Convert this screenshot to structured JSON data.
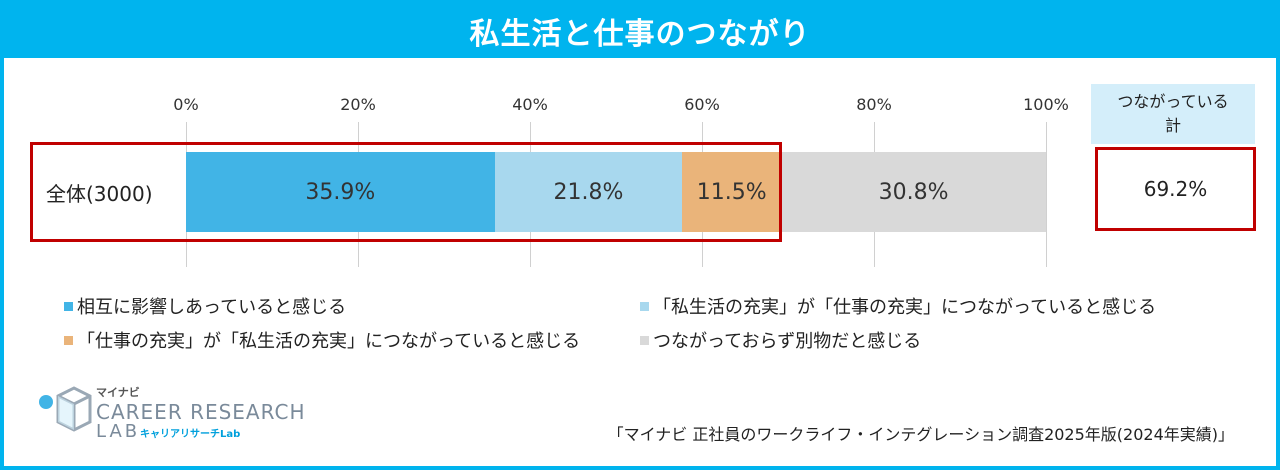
{
  "title": "私生活と仕事のつながり",
  "chart_data": {
    "type": "bar",
    "orientation": "horizontal-stacked",
    "xlim": [
      0,
      100
    ],
    "ticks": [
      "0%",
      "20%",
      "40%",
      "60%",
      "80%",
      "100%"
    ],
    "categories": [
      "全体(3000)"
    ],
    "series": [
      {
        "name": "相互に影響しあっていると感じる",
        "values": [
          35.9
        ],
        "label": "35.9%",
        "color": "#41b4e6"
      },
      {
        "name": "「私生活の充実」が「仕事の充実」につながっていると感じる",
        "values": [
          21.8
        ],
        "label": "21.8%",
        "color": "#a8d8ee"
      },
      {
        "name": "「仕事の充実」が「私生活の充実」につながっていると感じる",
        "values": [
          11.5
        ],
        "label": "11.5%",
        "color": "#eab47a"
      },
      {
        "name": "つながっておらず別物だと感じる",
        "values": [
          30.8
        ],
        "label": "30.8%",
        "color": "#d9d9d9"
      }
    ],
    "total": {
      "header_line1": "つながっている",
      "header_line2": "計",
      "value": 69.2,
      "label": "69.2%"
    },
    "legend_placement": "bottom",
    "grid": true
  },
  "logo": {
    "small": "マイナビ",
    "main": "CAREER RESEARCH",
    "lab": "LAB",
    "sub": "キャリアリサーチLab"
  },
  "source": "「マイナビ 正社員のワークライフ・インテグレーション調査2025年版(2024年実績)」"
}
